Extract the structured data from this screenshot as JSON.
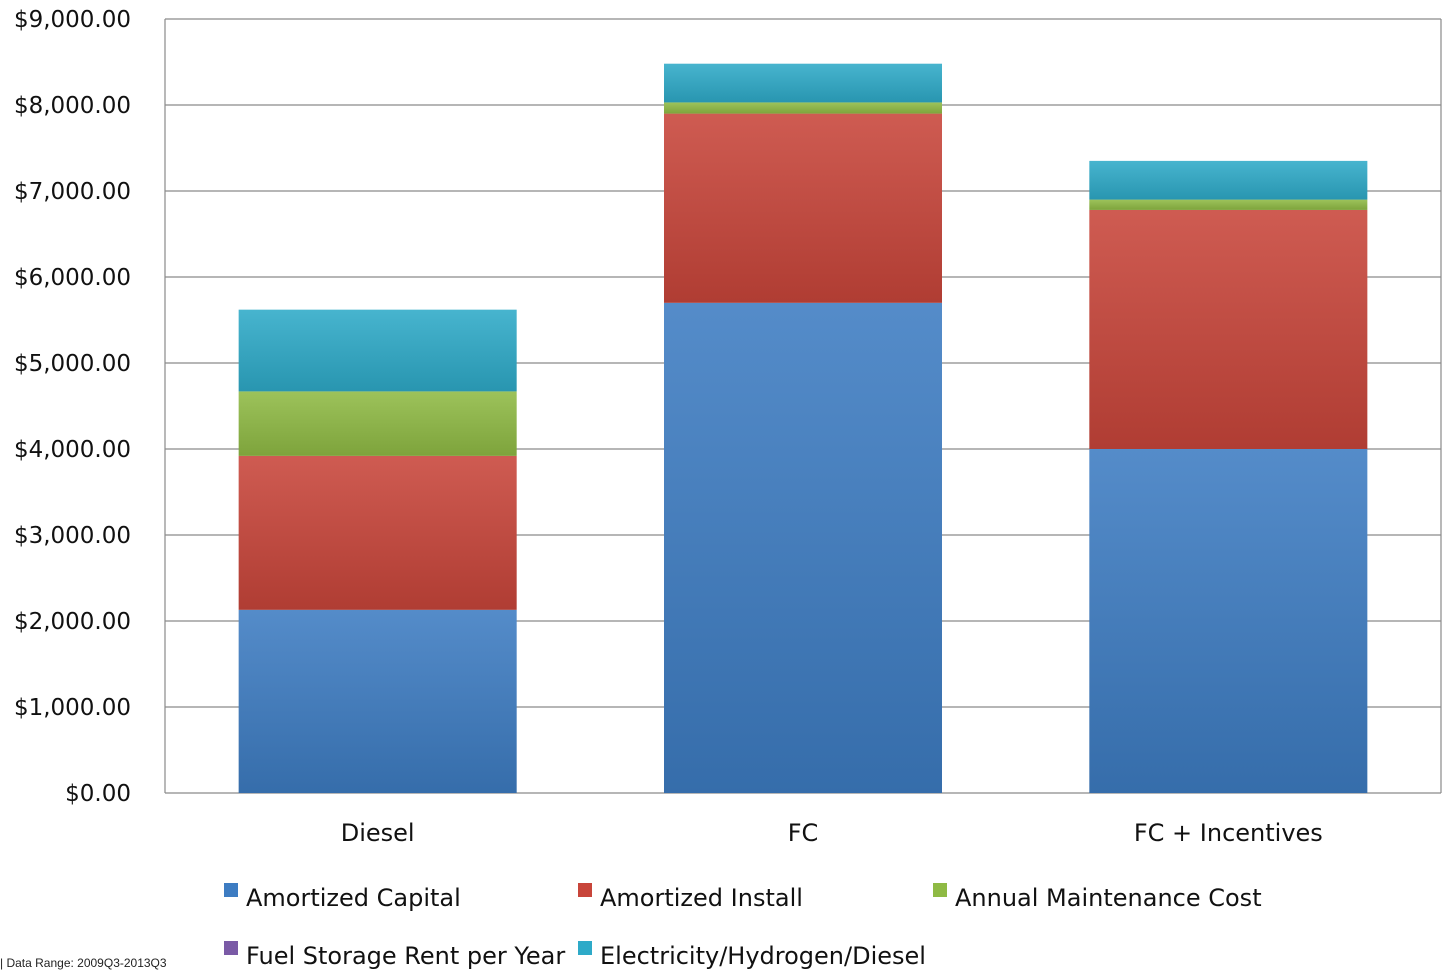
{
  "chart_data": {
    "type": "bar",
    "stacked": true,
    "categories": [
      "Diesel",
      "FC",
      "FC + Incentives"
    ],
    "series": [
      {
        "name": "Amortized Capital",
        "color": "#3d7cc2",
        "values": [
          2130,
          5700,
          4000
        ]
      },
      {
        "name": "Amortized Install",
        "color": "#c8453a",
        "values": [
          1790,
          2200,
          2780
        ]
      },
      {
        "name": "Annual Maintenance Cost",
        "color": "#8fba44",
        "values": [
          750,
          130,
          120
        ]
      },
      {
        "name": "Fuel Storage Rent per Year",
        "color": "#7a5aa6",
        "values": [
          0,
          0,
          0
        ]
      },
      {
        "name": "Electricity/Hydrogen/Diesel",
        "color": "#2eaac8",
        "values": [
          950,
          450,
          450
        ]
      }
    ],
    "yticks": [
      "$0.00",
      "$1,000.00",
      "$2,000.00",
      "$3,000.00",
      "$4,000.00",
      "$5,000.00",
      "$6,000.00",
      "$7,000.00",
      "$8,000.00",
      "$9,000.00"
    ],
    "ylim": [
      0,
      9000
    ],
    "grid": true,
    "legend": "bottom",
    "footnote": "| Data Range: 2009Q3-2013Q3"
  }
}
